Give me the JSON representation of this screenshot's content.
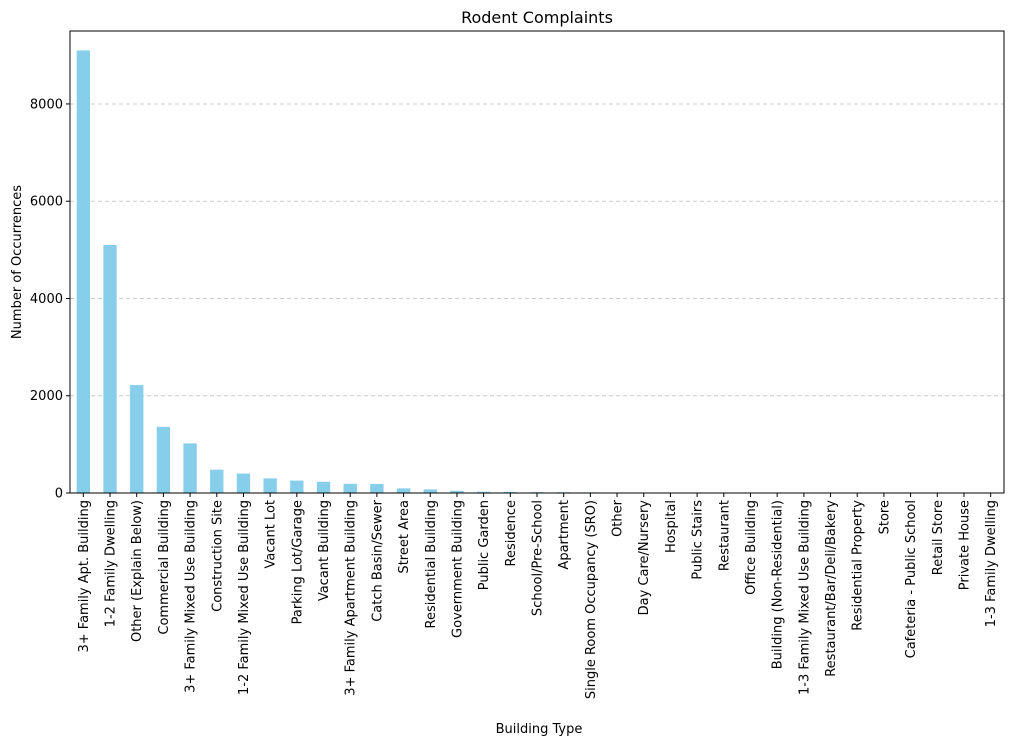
{
  "chart_data": {
    "type": "bar",
    "title": "Rodent Complaints",
    "xlabel": "Building Type",
    "ylabel": "Number of Occurrences",
    "ylim": [
      0,
      9500
    ],
    "yticks": [
      0,
      2000,
      4000,
      6000,
      8000
    ],
    "grid": "y-dashed",
    "bar_color": "#87ceeb",
    "categories": [
      "3+ Family Apt. Building",
      "1-2 Family Dwelling",
      "Other (Explain Below)",
      "Commercial Building",
      "3+ Family Mixed Use Building",
      "Construction Site",
      "1-2 Family Mixed Use Building",
      "Vacant Lot",
      "Parking Lot/Garage",
      "Vacant Building",
      "3+ Family Apartment Building",
      "Catch Basin/Sewer",
      "Street Area",
      "Residential Building",
      "Government Building",
      "Public Garden",
      "Residence",
      "School/Pre-School",
      "Apartment",
      "Single Room Occupancy (SRO)",
      "Other",
      "Day Care/Nursery",
      "Hospital",
      "Public Stairs",
      "Restaurant",
      "Office Building",
      "Building (Non-Residential)",
      "1-3 Family Mixed Use Building",
      "Restaurant/Bar/Deli/Bakery",
      "Residential Property",
      "Store",
      "Cafeteria - Public School",
      "Retail Store",
      "Private House",
      "1-3 Family Dwelling"
    ],
    "values": [
      9100,
      5100,
      2220,
      1360,
      1020,
      480,
      400,
      300,
      255,
      230,
      190,
      185,
      95,
      75,
      45,
      25,
      20,
      18,
      15,
      12,
      10,
      8,
      6,
      5,
      4,
      3,
      3,
      2,
      2,
      2,
      1,
      1,
      1,
      1,
      1
    ]
  }
}
